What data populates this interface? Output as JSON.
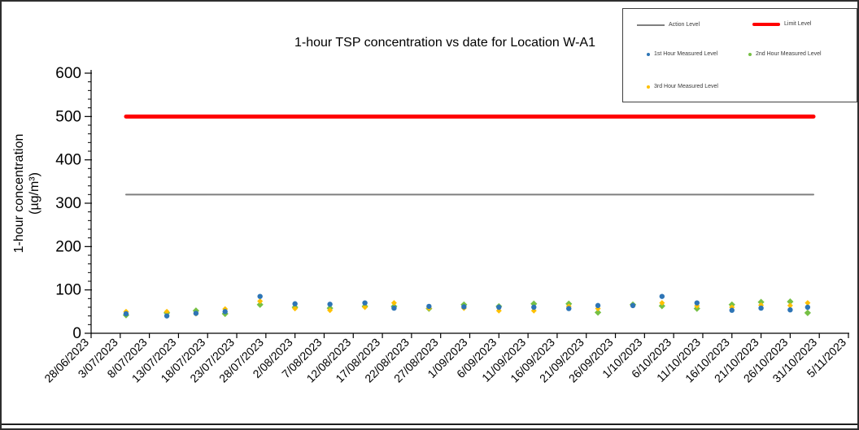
{
  "title": "1-hour TSP concentration vs date for Location W-A1",
  "y_axis": {
    "label_line1": "1-hour concentration",
    "label_line2": "(µg/m³)",
    "tick_values": [
      0,
      100,
      200,
      300,
      400,
      500,
      600
    ]
  },
  "legend": {
    "items": [
      {
        "label": "Action Level",
        "color": "#7f7f7f",
        "swatch": "line"
      },
      {
        "label": "Limit Level",
        "color": "#ff0000",
        "swatch": "line-thick"
      },
      {
        "label": "1st Hour Measured Level",
        "color": "#2e75b6",
        "swatch": "dot"
      },
      {
        "label": "2nd Hour Measured Level",
        "color": "#76c045",
        "swatch": "dot"
      },
      {
        "label": "3rd Hour Measured Level",
        "color": "#ffc000",
        "swatch": "dot"
      }
    ]
  },
  "chart_data": {
    "type": "scatter",
    "title": "1-hour TSP concentration vs date for Location W-A1",
    "xlabel": "",
    "ylabel": "1-hour concentration (µg/m³)",
    "ylim": [
      0,
      600
    ],
    "y_tick_step": 100,
    "grid": false,
    "legend_position": "top-right box",
    "x_tick_labels": [
      "28/06/2023",
      "3/07/2023",
      "8/07/2023",
      "13/07/2023",
      "18/07/2023",
      "23/07/2023",
      "28/07/2023",
      "2/08/2023",
      "7/08/2023",
      "12/08/2023",
      "17/08/2023",
      "22/08/2023",
      "27/08/2023",
      "1/09/2023",
      "6/09/2023",
      "11/09/2023",
      "16/09/2023",
      "21/09/2023",
      "26/09/2023",
      "1/10/2023",
      "6/10/2023",
      "11/10/2023",
      "16/10/2023",
      "21/10/2023",
      "26/10/2023",
      "31/10/2023",
      "5/11/2023"
    ],
    "x_tick_interval_days": 5,
    "x_range_days": [
      0,
      130
    ],
    "points_dates": [
      "4/07/2023",
      "11/07/2023",
      "16/07/2023",
      "21/07/2023",
      "27/07/2023",
      "2/08/2023",
      "8/08/2023",
      "14/08/2023",
      "19/08/2023",
      "25/08/2023",
      "31/08/2023",
      "6/09/2023",
      "12/09/2023",
      "18/09/2023",
      "23/09/2023",
      "29/09/2023",
      "4/10/2023",
      "10/10/2023",
      "16/10/2023",
      "21/10/2023",
      "26/10/2023",
      "29/10/2023"
    ],
    "points_x_days": [
      6,
      13,
      18,
      23,
      29,
      35,
      41,
      47,
      52,
      58,
      64,
      70,
      76,
      82,
      87,
      93,
      98,
      104,
      110,
      115,
      120,
      123
    ],
    "series": [
      {
        "name": "1st Hour Measured Level",
        "marker": "circle",
        "color": "#2e75b6",
        "values": [
          45,
          40,
          46,
          50,
          85,
          68,
          67,
          70,
          58,
          62,
          61,
          60,
          60,
          57,
          64,
          64,
          85,
          70,
          53,
          58,
          54,
          60
        ]
      },
      {
        "name": "2nd Hour Measured Level",
        "marker": "diamond",
        "color": "#76c045",
        "values": [
          42,
          47,
          52,
          45,
          66,
          60,
          58,
          62,
          62,
          57,
          66,
          62,
          68,
          68,
          48,
          66,
          63,
          57,
          66,
          72,
          73,
          47
        ]
      },
      {
        "name": "3rd Hour Measured Level",
        "marker": "diamond",
        "color": "#ffc000",
        "values": [
          50,
          50,
          45,
          56,
          74,
          57,
          53,
          60,
          70,
          58,
          58,
          52,
          52,
          62,
          57,
          64,
          70,
          63,
          60,
          65,
          64,
          70
        ]
      }
    ],
    "reference_lines": [
      {
        "name": "Action Level",
        "value": 320,
        "color": "#7f7f7f",
        "stroke_width": 2,
        "span_days": [
          6,
          124
        ]
      },
      {
        "name": "Limit Level",
        "value": 500,
        "color": "#ff0000",
        "stroke_width": 5,
        "span_days": [
          6,
          124
        ]
      }
    ]
  }
}
